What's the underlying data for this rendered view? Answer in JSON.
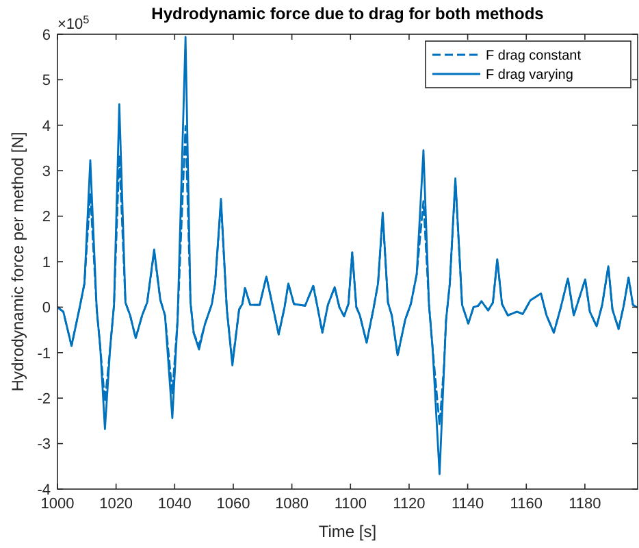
{
  "chart_data": {
    "type": "line",
    "title": "Hydrodynamic force due to drag for both methods",
    "xlabel": "Time [s]",
    "ylabel": "Hydrodynamic force per method [N]",
    "annotations": [
      "×10$^{5}$"
    ],
    "x": [
      1000,
      1002,
      1004.8,
      1007.6,
      1009.2,
      1011.2,
      1013.4,
      1014.6,
      1016.2,
      1018,
      1019.3,
      1021.1,
      1023.2,
      1024.8,
      1026.7,
      1028.9,
      1030.6,
      1033,
      1035.1,
      1036.7,
      1039.2,
      1041,
      1043.7,
      1045.4,
      1046.5,
      1048.3,
      1050.3,
      1052.7,
      1053.8,
      1055.8,
      1057.8,
      1059.7,
      1062,
      1063.1,
      1064,
      1065.8,
      1069,
      1071.3,
      1073.7,
      1075.5,
      1077.5,
      1078.8,
      1080.7,
      1084.5,
      1087.3,
      1088.9,
      1090.4,
      1092.3,
      1094.6,
      1096.2,
      1097.8,
      1099.3,
      1100.6,
      1102,
      1103.2,
      1105.5,
      1107.8,
      1109.4,
      1111,
      1112.8,
      1114.1,
      1116.1,
      1118.7,
      1120.6,
      1122.6,
      1124.9,
      1126.8,
      1128,
      1130.4,
      1131.9,
      1132.6,
      1133.9,
      1135.8,
      1138.1,
      1140.2,
      1142,
      1143.6,
      1144.7,
      1147,
      1148.6,
      1150.1,
      1151.7,
      1153.7,
      1156.8,
      1158.8,
      1161.4,
      1165,
      1166.9,
      1169.4,
      1171.6,
      1174.2,
      1176.2,
      1180.1,
      1181.7,
      1184,
      1185.9,
      1188,
      1189.4,
      1191.5,
      1193.3,
      1194.9,
      1196.4,
      1197.7
    ],
    "series": [
      {
        "name": "F drag constant",
        "color": "#0072bd",
        "line_style": "dashed",
        "values": [
          0,
          -0.1,
          -0.85,
          0,
          0.52,
          2.5,
          -0.05,
          -0.88,
          -2.08,
          -0.88,
          0.05,
          3.34,
          0.1,
          -0.18,
          -0.68,
          -0.18,
          0.1,
          1.22,
          0.16,
          -0.18,
          -1.89,
          -0.27,
          3.98,
          0.1,
          -0.57,
          -0.85,
          -0.38,
          0.07,
          0.52,
          2.3,
          -0.05,
          -1.22,
          -0.05,
          0.07,
          0.42,
          0.05,
          0.05,
          0.67,
          -0.05,
          -0.6,
          0,
          0.52,
          0.07,
          0.03,
          0.47,
          -0.05,
          -0.56,
          0.05,
          0.44,
          0,
          -0.2,
          0.07,
          1.2,
          0,
          -0.18,
          -0.78,
          -0.05,
          0.52,
          2,
          0.1,
          -0.18,
          -1.06,
          -0.27,
          0.07,
          0.72,
          2.33,
          0.05,
          -0.88,
          -2.59,
          -1.3,
          -0.3,
          0.52,
          2.78,
          0.05,
          -0.36,
          0,
          0.03,
          0.13,
          -0.07,
          0.1,
          1.05,
          0.07,
          -0.18,
          -0.1,
          -0.15,
          0.15,
          0.3,
          -0.18,
          -0.56,
          -0.05,
          0.63,
          -0.18,
          0.61,
          -0.1,
          -0.42,
          0.05,
          0.9,
          -0.05,
          -0.48,
          0.05,
          0.65,
          0.05,
          0
        ]
      },
      {
        "name": "F drag varying",
        "color": "#0072bd",
        "line_style": "solid",
        "values": [
          0,
          -0.1,
          -0.85,
          0,
          0.52,
          3.23,
          -0.05,
          -0.88,
          -2.68,
          -0.88,
          0.05,
          4.46,
          0.1,
          -0.18,
          -0.68,
          -0.18,
          0.1,
          1.27,
          0.16,
          -0.18,
          -2.44,
          -0.27,
          5.94,
          0.1,
          -0.57,
          -0.93,
          -0.38,
          0.07,
          0.52,
          2.38,
          -0.05,
          -1.28,
          -0.05,
          0.07,
          0.42,
          0.05,
          0.05,
          0.67,
          -0.05,
          -0.6,
          0,
          0.52,
          0.07,
          0.03,
          0.47,
          -0.05,
          -0.56,
          0.05,
          0.44,
          0,
          -0.2,
          0.07,
          1.2,
          0,
          -0.18,
          -0.78,
          -0.05,
          0.52,
          2.08,
          0.1,
          -0.18,
          -1.06,
          -0.27,
          0.07,
          0.72,
          3.45,
          0.05,
          -0.88,
          -3.67,
          -1.38,
          -0.3,
          0.52,
          2.83,
          0.05,
          -0.36,
          0,
          0.03,
          0.13,
          -0.07,
          0.1,
          1.05,
          0.07,
          -0.18,
          -0.1,
          -0.15,
          0.15,
          0.3,
          -0.18,
          -0.56,
          -0.05,
          0.63,
          -0.18,
          0.61,
          -0.1,
          -0.42,
          0.05,
          0.9,
          -0.05,
          -0.48,
          0.05,
          0.65,
          0.05,
          0
        ]
      }
    ],
    "xlim": [
      1000,
      1198
    ],
    "xticks": [
      1000,
      1020,
      1040,
      1060,
      1080,
      1100,
      1120,
      1140,
      1160,
      1180
    ],
    "ylim": [
      -4,
      6
    ],
    "yticks": [
      -4,
      -3,
      -2,
      -1,
      0,
      1,
      2,
      3,
      4,
      5,
      6
    ],
    "legend": "top right"
  }
}
